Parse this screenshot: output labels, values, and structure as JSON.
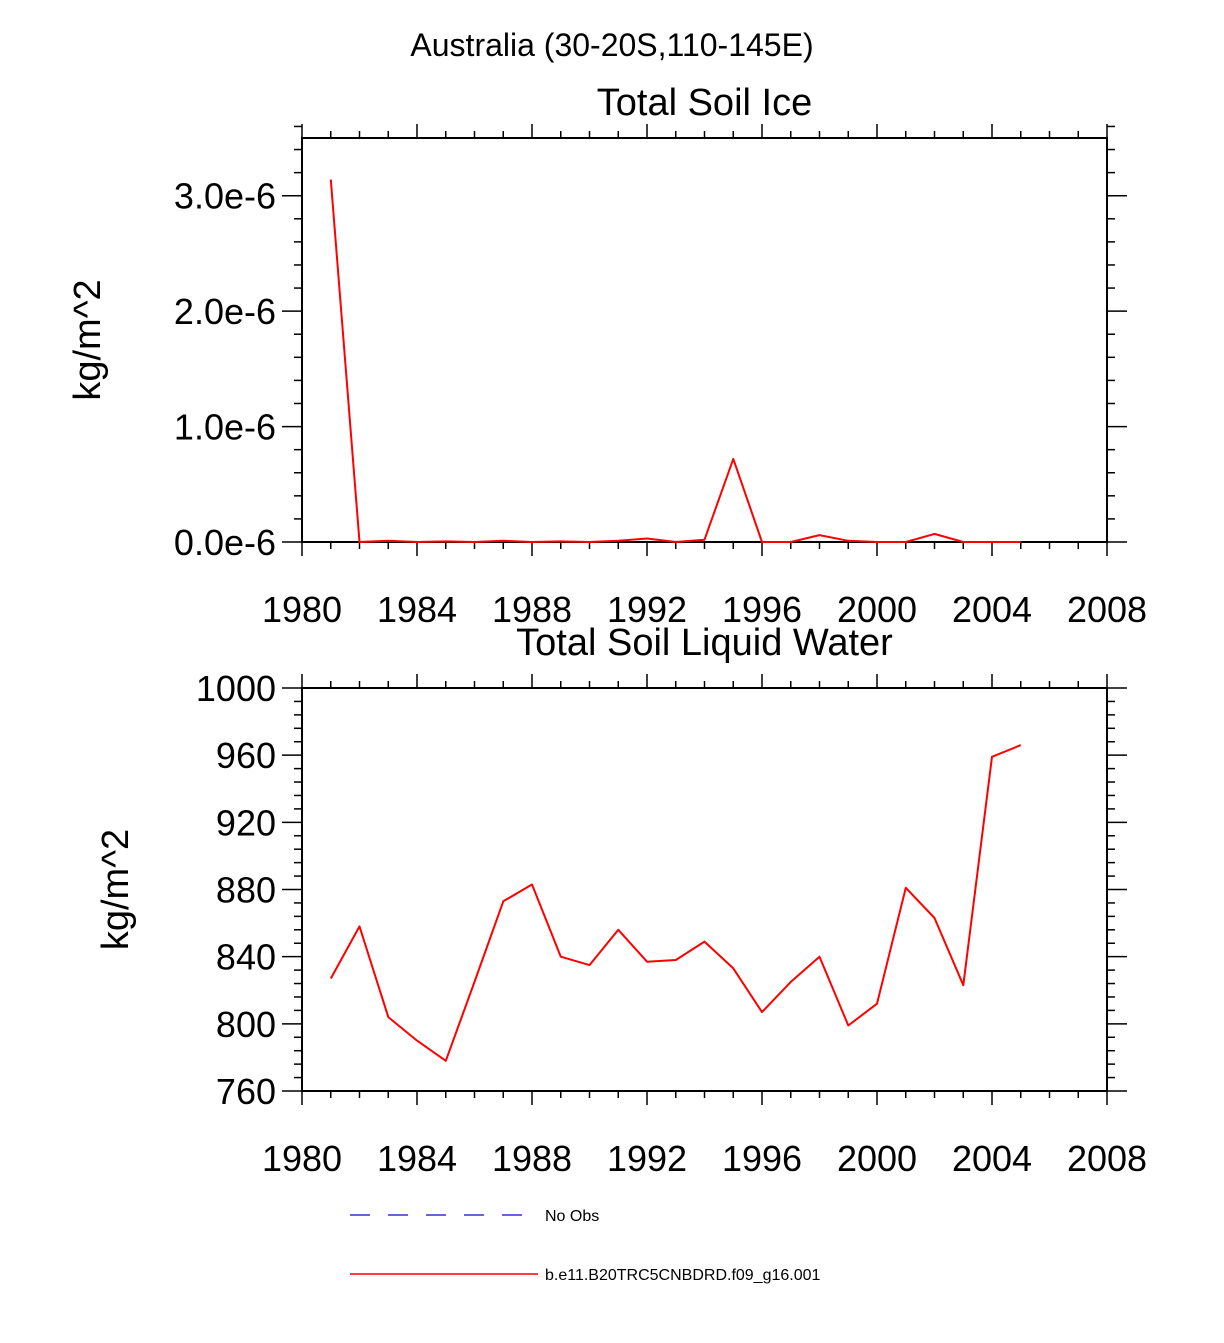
{
  "figure": {
    "main_title": "Australia (30-20S,110-145E)"
  },
  "chart_data": [
    {
      "type": "line",
      "title": "Total Soil Ice",
      "xlabel": "",
      "ylabel": "kg/m^2",
      "xlim": [
        1980,
        2008
      ],
      "ylim": [
        0,
        3.5e-06
      ],
      "x_ticks": [
        1980,
        1984,
        1988,
        1992,
        1996,
        2000,
        2004,
        2008
      ],
      "x_tick_labels": [
        "1980",
        "1984",
        "1988",
        "1992",
        "1996",
        "2000",
        "2004",
        "2008"
      ],
      "y_ticks": [
        0,
        1e-06,
        2e-06,
        3e-06
      ],
      "y_tick_labels": [
        "0.0e-6",
        "1.0e-6",
        "2.0e-6",
        "3.0e-6"
      ],
      "series": [
        {
          "name": "b.e11.B20TRC5CNBDRD.f09_g16.001",
          "color": "#ff0000",
          "x": [
            1981,
            1982,
            1983,
            1984,
            1985,
            1986,
            1987,
            1988,
            1989,
            1990,
            1991,
            1992,
            1993,
            1994,
            1995,
            1996,
            1997,
            1998,
            1999,
            2000,
            2001,
            2002,
            2003,
            2004,
            2005
          ],
          "y": [
            3.14e-06,
            0.0,
            1e-08,
            0.0,
            5e-09,
            0.0,
            1e-08,
            0.0,
            5e-09,
            0.0,
            1e-08,
            3e-08,
            0.0,
            2e-08,
            7.2e-07,
            0.0,
            0.0,
            6e-08,
            1e-08,
            0.0,
            0.0,
            7e-08,
            0.0,
            0.0,
            0.0
          ]
        }
      ]
    },
    {
      "type": "line",
      "title": "Total Soil Liquid Water",
      "xlabel": "",
      "ylabel": "kg/m^2",
      "xlim": [
        1980,
        2008
      ],
      "ylim": [
        760,
        1000
      ],
      "x_ticks": [
        1980,
        1984,
        1988,
        1992,
        1996,
        2000,
        2004,
        2008
      ],
      "x_tick_labels": [
        "1980",
        "1984",
        "1988",
        "1992",
        "1996",
        "2000",
        "2004",
        "2008"
      ],
      "y_ticks": [
        760,
        800,
        840,
        880,
        920,
        960,
        1000
      ],
      "y_tick_labels": [
        "760",
        "800",
        "840",
        "880",
        "920",
        "960",
        "1000"
      ],
      "series": [
        {
          "name": "b.e11.B20TRC5CNBDRD.f09_g16.001",
          "color": "#ff0000",
          "x": [
            1981,
            1982,
            1983,
            1984,
            1985,
            1986,
            1987,
            1988,
            1989,
            1990,
            1991,
            1992,
            1993,
            1994,
            1995,
            1996,
            1997,
            1998,
            1999,
            2000,
            2001,
            2002,
            2003,
            2004,
            2005
          ],
          "y": [
            827,
            858,
            804,
            790,
            778,
            825,
            873,
            883,
            840,
            835,
            856,
            837,
            838,
            849,
            833,
            807,
            825,
            840,
            799,
            812,
            881,
            863,
            823,
            959,
            966
          ]
        }
      ]
    }
  ],
  "legend": {
    "items": [
      {
        "label": "No Obs",
        "color": "#3333cc",
        "style": "dashed"
      },
      {
        "label": "b.e11.B20TRC5CNBDRD.f09_g16.001",
        "color": "#ff0000",
        "style": "solid"
      }
    ]
  }
}
